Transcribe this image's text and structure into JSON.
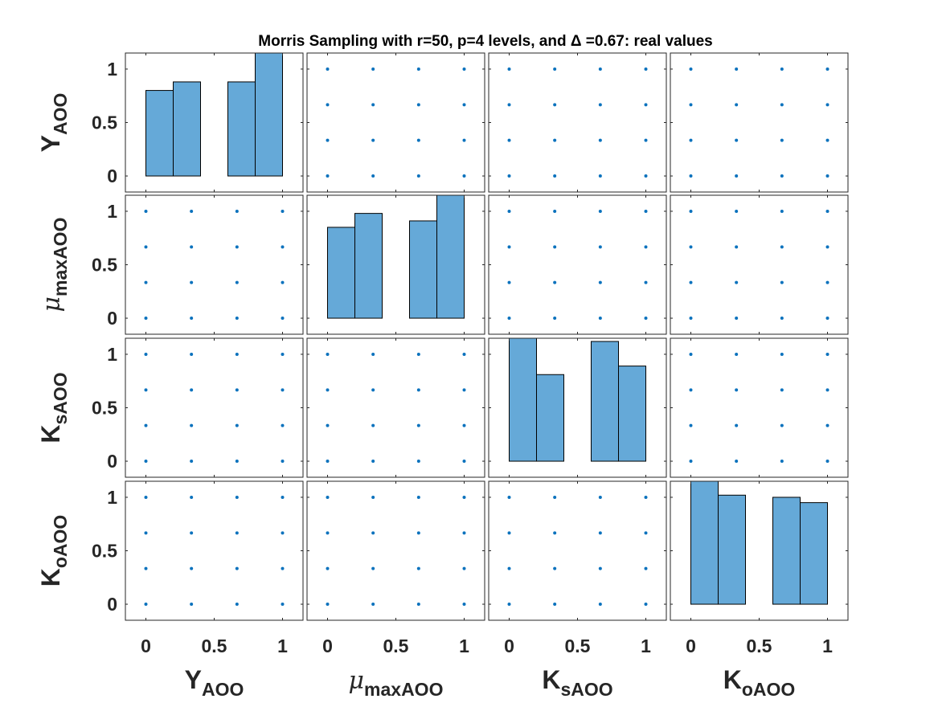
{
  "chart_data": {
    "type": "scatter-matrix",
    "title": "Morris Sampling with r=50, p=4 levels, and Δ =0.67: real values",
    "variables": [
      {
        "id": "Y_AOO",
        "label_main": "Y",
        "label_sub": "AOO",
        "greek": false
      },
      {
        "id": "mu_maxAOO",
        "label_main": "μ",
        "label_sub": "maxAOO",
        "greek": true
      },
      {
        "id": "K_sAOO",
        "label_main": "K",
        "label_sub": "sAOO",
        "greek": false
      },
      {
        "id": "K_oAOO",
        "label_main": "K",
        "label_sub": "oAOO",
        "greek": false
      }
    ],
    "xlim": [
      -0.15,
      1.15
    ],
    "ylim": [
      -0.15,
      1.15
    ],
    "x_ticks": [
      0,
      0.5,
      1
    ],
    "x_tick_labels": [
      "0",
      "0.5",
      "1"
    ],
    "y_ticks": [
      0,
      0.5,
      1
    ],
    "y_tick_labels": [
      "0",
      "0.5",
      "1"
    ],
    "scatter_levels": [
      0,
      0.3333,
      0.6667,
      1
    ],
    "histograms": [
      {
        "variable": "Y_AOO",
        "bin_edges": [
          0,
          0.2,
          0.4,
          0.6,
          0.8,
          1.0
        ],
        "heights": [
          0.8,
          0.88,
          0,
          0.88,
          1.15
        ]
      },
      {
        "variable": "mu_maxAOO",
        "bin_edges": [
          0,
          0.2,
          0.4,
          0.6,
          0.8,
          1.0
        ],
        "heights": [
          0.85,
          0.98,
          0,
          0.91,
          1.15
        ]
      },
      {
        "variable": "K_sAOO",
        "bin_edges": [
          0,
          0.2,
          0.4,
          0.6,
          0.8,
          1.0
        ],
        "heights": [
          1.15,
          0.81,
          0,
          1.12,
          0.89
        ]
      },
      {
        "variable": "K_oAOO",
        "bin_edges": [
          0,
          0.2,
          0.4,
          0.6,
          0.8,
          1.0
        ],
        "heights": [
          1.15,
          1.02,
          0,
          1.0,
          0.95
        ]
      }
    ],
    "grid": false,
    "legend": "none"
  },
  "colors": {
    "bar_fill": "#65a9d8",
    "bar_edge": "#000000",
    "point": "#0b72bd",
    "axis": "#262626"
  }
}
